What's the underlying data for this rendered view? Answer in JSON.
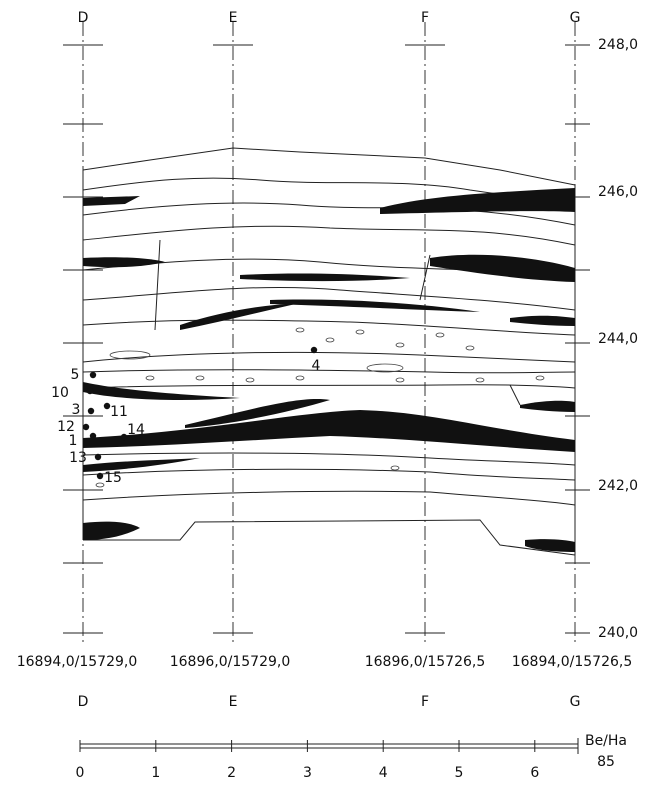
{
  "columns_top": [
    "D",
    "E",
    "F",
    "G"
  ],
  "columns_bottom": [
    "D",
    "E",
    "F",
    "G"
  ],
  "elevations": [
    {
      "value": 248,
      "label": "248,0"
    },
    {
      "value": 246,
      "label": "246,0"
    },
    {
      "value": 244,
      "label": "244,0"
    },
    {
      "value": 242,
      "label": "242,0"
    },
    {
      "value": 240,
      "label": "240,0"
    }
  ],
  "coordinates": [
    "16894,0/15729,0",
    "16896,0/15729,0",
    "16896,0/15726,5",
    "16894,0/15726,5"
  ],
  "samples": [
    "5",
    "10",
    "3",
    "11",
    "12",
    "14",
    "1",
    "13",
    "15",
    "4"
  ],
  "scale": {
    "ticks": [
      0,
      1,
      2,
      3,
      4,
      5,
      6
    ],
    "unit": "Be/Ha",
    "number": "85"
  }
}
